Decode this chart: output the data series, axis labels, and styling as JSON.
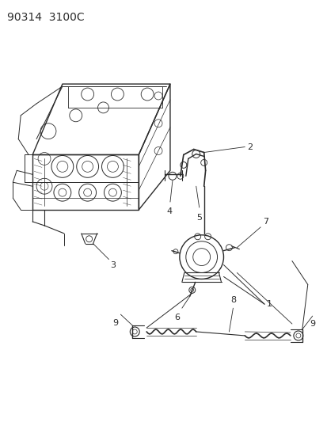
{
  "title": "90314  3100C",
  "bg_color": "#ffffff",
  "line_color": "#2a2a2a",
  "label_color": "#2a2a2a",
  "title_fontsize": 10,
  "label_fontsize": 8,
  "fig_width": 4.14,
  "fig_height": 5.33,
  "dpi": 100
}
